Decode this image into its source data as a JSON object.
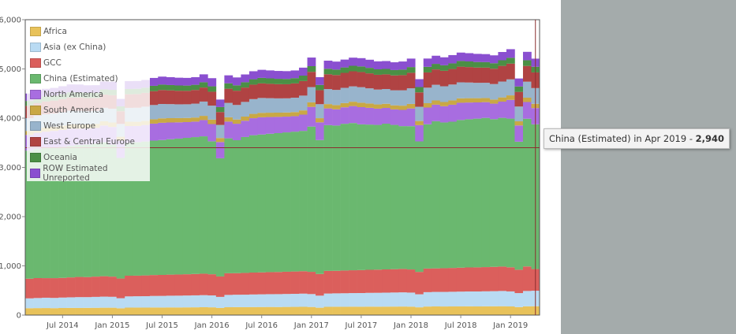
{
  "chart_data": {
    "type": "bar",
    "stacked": true,
    "x_start": "2014-03",
    "x": [
      "2014-03",
      "2014-04",
      "2014-05",
      "2014-06",
      "2014-07",
      "2014-08",
      "2014-09",
      "2014-10",
      "2014-11",
      "2014-12",
      "2015-01",
      "2015-02",
      "2015-03",
      "2015-04",
      "2015-05",
      "2015-06",
      "2015-07",
      "2015-08",
      "2015-09",
      "2015-10",
      "2015-11",
      "2015-12",
      "2016-01",
      "2016-02",
      "2016-03",
      "2016-04",
      "2016-05",
      "2016-06",
      "2016-07",
      "2016-08",
      "2016-09",
      "2016-10",
      "2016-11",
      "2016-12",
      "2017-01",
      "2017-02",
      "2017-03",
      "2017-04",
      "2017-05",
      "2017-06",
      "2017-07",
      "2017-08",
      "2017-09",
      "2017-10",
      "2017-11",
      "2017-12",
      "2018-01",
      "2018-02",
      "2018-03",
      "2018-04",
      "2018-05",
      "2018-06",
      "2018-07",
      "2018-08",
      "2018-09",
      "2018-10",
      "2018-11",
      "2018-12",
      "2019-01",
      "2019-02",
      "2019-03",
      "2019-04"
    ],
    "series": [
      {
        "name": "Africa",
        "color": "#e8c25a",
        "values": [
          140,
          142,
          143,
          141,
          144,
          146,
          145,
          147,
          148,
          150,
          150,
          138,
          152,
          153,
          152,
          155,
          154,
          156,
          155,
          157,
          158,
          160,
          158,
          145,
          160,
          162,
          161,
          163,
          164,
          165,
          164,
          166,
          167,
          168,
          165,
          150,
          168,
          170,
          169,
          171,
          170,
          172,
          171,
          172,
          173,
          174,
          172,
          158,
          174,
          176,
          175,
          176,
          177,
          178,
          176,
          178,
          179,
          180,
          176,
          162,
          178,
          180
        ]
      },
      {
        "name": "Asia (ex China)",
        "color": "#b9dbf3",
        "values": [
          200,
          205,
          210,
          208,
          212,
          215,
          220,
          218,
          222,
          225,
          222,
          205,
          228,
          230,
          232,
          234,
          236,
          238,
          240,
          241,
          243,
          245,
          242,
          225,
          250,
          252,
          254,
          256,
          258,
          260,
          262,
          263,
          265,
          268,
          262,
          245,
          270,
          272,
          275,
          276,
          278,
          280,
          282,
          284,
          286,
          288,
          285,
          265,
          292,
          295,
          296,
          298,
          300,
          302,
          304,
          305,
          307,
          310,
          305,
          285,
          312,
          315
        ]
      },
      {
        "name": "GCC",
        "color": "#db5f5c",
        "values": [
          400,
          405,
          398,
          402,
          400,
          405,
          410,
          408,
          412,
          415,
          410,
          400,
          420,
          418,
          422,
          425,
          426,
          428,
          430,
          432,
          434,
          436,
          430,
          415,
          440,
          438,
          442,
          445,
          446,
          448,
          450,
          452,
          454,
          456,
          452,
          440,
          460,
          458,
          462,
          464,
          466,
          468,
          470,
          472,
          474,
          476,
          470,
          455,
          480,
          478,
          482,
          484,
          486,
          488,
          490,
          492,
          494,
          496,
          490,
          475,
          498,
          440
        ]
      },
      {
        "name": "China (Estimated)",
        "color": "#6ab86f",
        "values": [
          2600,
          2620,
          2640,
          2650,
          2660,
          2670,
          2680,
          2690,
          2700,
          2720,
          2680,
          2450,
          2700,
          2710,
          2720,
          2730,
          2740,
          2750,
          2760,
          2770,
          2780,
          2790,
          2700,
          2400,
          2740,
          2700,
          2760,
          2790,
          2800,
          2810,
          2820,
          2830,
          2840,
          2850,
          2950,
          2720,
          2960,
          2950,
          2980,
          2990,
          2960,
          2950,
          2940,
          2960,
          2930,
          2900,
          2910,
          2650,
          2930,
          2990,
          2960,
          2970,
          3000,
          3010,
          3020,
          3030,
          3000,
          3020,
          3020,
          2600,
          3000,
          2940
        ]
      },
      {
        "name": "North America",
        "color": "#a86de0",
        "values": [
          320,
          330,
          335,
          340,
          345,
          350,
          330,
          325,
          320,
          340,
          360,
          350,
          340,
          330,
          335,
          345,
          350,
          340,
          330,
          320,
          315,
          330,
          350,
          330,
          340,
          335,
          330,
          345,
          350,
          340,
          330,
          320,
          315,
          330,
          400,
          360,
          340,
          330,
          335,
          345,
          350,
          340,
          330,
          320,
          315,
          330,
          360,
          330,
          340,
          335,
          330,
          345,
          350,
          340,
          330,
          320,
          315,
          330,
          380,
          330,
          340,
          330
        ]
      },
      {
        "name": "South America",
        "color": "#c9a845",
        "values": [
          80,
          82,
          84,
          86,
          88,
          90,
          85,
          84,
          83,
          86,
          90,
          80,
          88,
          86,
          85,
          88,
          90,
          88,
          86,
          84,
          83,
          86,
          90,
          82,
          88,
          86,
          85,
          88,
          90,
          88,
          86,
          84,
          83,
          86,
          92,
          84,
          88,
          86,
          85,
          88,
          90,
          88,
          86,
          84,
          83,
          86,
          92,
          84,
          88,
          86,
          85,
          88,
          90,
          88,
          86,
          84,
          83,
          86,
          92,
          84,
          88,
          86
        ]
      },
      {
        "name": "West Europe",
        "color": "#98b4cc",
        "values": [
          260,
          265,
          270,
          268,
          272,
          275,
          280,
          270,
          265,
          275,
          280,
          260,
          282,
          285,
          288,
          290,
          292,
          285,
          280,
          278,
          282,
          290,
          285,
          265,
          292,
          295,
          298,
          300,
          302,
          295,
          290,
          288,
          292,
          300,
          310,
          285,
          305,
          308,
          310,
          312,
          315,
          308,
          302,
          300,
          305,
          312,
          318,
          290,
          315,
          318,
          320,
          322,
          325,
          318,
          312,
          310,
          315,
          322,
          325,
          300,
          325,
          320
        ]
      },
      {
        "name": "East & Central Europe",
        "color": "#b04343",
        "values": [
          250,
          255,
          258,
          262,
          265,
          268,
          270,
          266,
          262,
          268,
          275,
          258,
          275,
          278,
          280,
          282,
          284,
          280,
          276,
          274,
          278,
          285,
          282,
          262,
          288,
          290,
          292,
          294,
          296,
          292,
          288,
          286,
          290,
          296,
          310,
          285,
          300,
          302,
          304,
          306,
          308,
          304,
          300,
          298,
          302,
          308,
          315,
          292,
          310,
          312,
          314,
          316,
          318,
          314,
          310,
          308,
          312,
          318,
          320,
          298,
          320,
          318
        ]
      },
      {
        "name": "Oceania",
        "color": "#4b8f45",
        "values": [
          100,
          102,
          104,
          103,
          105,
          106,
          105,
          104,
          103,
          106,
          108,
          100,
          108,
          107,
          106,
          108,
          110,
          108,
          107,
          106,
          105,
          108,
          110,
          102,
          110,
          109,
          108,
          110,
          112,
          110,
          109,
          108,
          107,
          110,
          115,
          106,
          112,
          111,
          110,
          112,
          114,
          112,
          111,
          110,
          109,
          112,
          116,
          108,
          114,
          113,
          112,
          114,
          116,
          114,
          113,
          112,
          111,
          114,
          118,
          110,
          116,
          115
        ]
      },
      {
        "name": "ROW Estimated Unreported",
        "color": "#8a4fd0",
        "values": [
          150,
          152,
          154,
          155,
          158,
          160,
          158,
          156,
          155,
          160,
          165,
          150,
          160,
          158,
          156,
          160,
          162,
          160,
          158,
          156,
          155,
          160,
          165,
          152,
          162,
          160,
          158,
          162,
          164,
          162,
          160,
          158,
          156,
          162,
          175,
          158,
          165,
          162,
          160,
          165,
          168,
          165,
          162,
          160,
          158,
          165,
          172,
          160,
          168,
          165,
          162,
          168,
          170,
          168,
          165,
          162,
          160,
          168,
          175,
          162,
          170,
          165
        ]
      }
    ],
    "ylim": [
      0,
      6000
    ],
    "yticks": [
      "0",
      "1,000",
      "2,000",
      "3,000",
      "4,000",
      "5,000",
      "6,000"
    ],
    "xticks": [
      {
        "label": "Jul 2014",
        "date": "2014-07"
      },
      {
        "label": "Jan 2015",
        "date": "2015-01"
      },
      {
        "label": "Jul 2015",
        "date": "2015-07"
      },
      {
        "label": "Jan 2016",
        "date": "2016-01"
      },
      {
        "label": "Jul 2016",
        "date": "2016-07"
      },
      {
        "label": "Jan 2017",
        "date": "2017-01"
      },
      {
        "label": "Jul 2017",
        "date": "2017-07"
      },
      {
        "label": "Jan 2018",
        "date": "2018-01"
      },
      {
        "label": "Jul 2018",
        "date": "2018-07"
      },
      {
        "label": "Jan 2019",
        "date": "2019-01"
      }
    ],
    "crosshair": {
      "date": "2019-04",
      "value": 3400
    },
    "legend_position": "top-left",
    "grid": false,
    "title": "",
    "xlabel": "",
    "ylabel": ""
  },
  "tooltip": {
    "text": "China (Estimated) in Apr 2019 - ",
    "value": "2,940"
  }
}
